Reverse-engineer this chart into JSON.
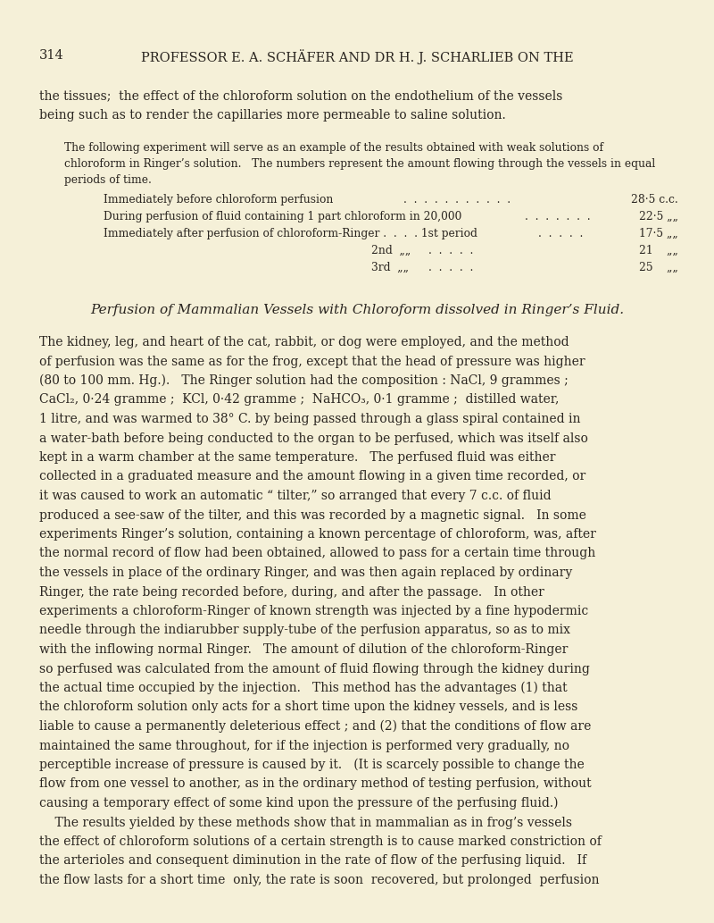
{
  "page_number": "314",
  "header": "PROFESSOR E. A. SCHÄFER AND DR H. J. SCHARLIEB ON THE",
  "bg_color": "#f5f0d8",
  "text_color": "#2a2520",
  "header_fontsize": 10.5,
  "body_fontsize": 10.0,
  "small_fontsize": 8.8,
  "table_fontsize": 8.8,
  "title_fontsize": 11.0,
  "para1_lines": [
    "the tissues;  the effect of the chloroform solution on the endothelium of the vessels",
    "being such as to render the capillaries more permeable to saline solution."
  ],
  "intro_lines": [
    "The following experiment will serve as an example of the results obtained with weak solutions of",
    "chloroform in Ringer’s solution.   The numbers represent the amount flowing through the vessels in equal",
    "periods of time."
  ],
  "section_title": "Perfusion of Mammalian Vessels with Chloroform dissolved in Ringer’s Fluid.",
  "body_lines": [
    "The kidney, leg, and heart of the cat, rabbit, or dog were employed, and the method",
    "of perfusion was the same as for the frog, except that the head of pressure was higher",
    "(80 to 100 mm. Hg.).   The Ringer solution had the composition : NaCl, 9 grammes ;",
    "CaCl₂, 0·24 gramme ;  KCl, 0·42 gramme ;  NaHCO₃, 0·1 gramme ;  distilled water,",
    "1 litre, and was warmed to 38° C. by being passed through a glass spiral contained in",
    "a water-bath before being conducted to the organ to be perfused, which was itself also",
    "kept in a warm chamber at the same temperature.   The perfused fluid was either",
    "collected in a graduated measure and the amount flowing in a given time recorded, or",
    "it was caused to work an automatic “ tilter,” so arranged that every 7 c.c. of fluid",
    "produced a see-saw of the tilter, and this was recorded by a magnetic signal.   In some",
    "experiments Ringer’s solution, containing a known percentage of chloroform, was, after",
    "the normal record of flow had been obtained, allowed to pass for a certain time through",
    "the vessels in place of the ordinary Ringer, and was then again replaced by ordinary",
    "Ringer, the rate being recorded before, during, and after the passage.   In other",
    "experiments a chloroform-Ringer of known strength was injected by a fine hypodermic",
    "needle through the indiarubber supply-tube of the perfusion apparatus, so as to mix",
    "with the inflowing normal Ringer.   The amount of dilution of the chloroform-Ringer",
    "so perfused was calculated from the amount of fluid flowing through the kidney during",
    "the actual time occupied by the injection.   This method has the advantages (1) that",
    "the chloroform solution only acts for a short time upon the kidney vessels, and is less",
    "liable to cause a permanently deleterious effect ; and (2) that the conditions of flow are",
    "maintained the same throughout, for if the injection is performed very gradually, no",
    "perceptible increase of pressure is caused by it.   (It is scarcely possible to change the",
    "flow from one vessel to another, as in the ordinary method of testing perfusion, without",
    "causing a temporary effect of some kind upon the pressure of the perfusing fluid.)",
    "    The results yielded by these methods show that in mammalian as in frog’s vessels",
    "the effect of chloroform solutions of a certain strength is to cause marked constriction of",
    "the arterioles and consequent diminution in the rate of flow of the perfusing liquid.   If",
    "the flow lasts for a short time  only, the rate is soon  recovered, but prolonged  perfusion"
  ]
}
